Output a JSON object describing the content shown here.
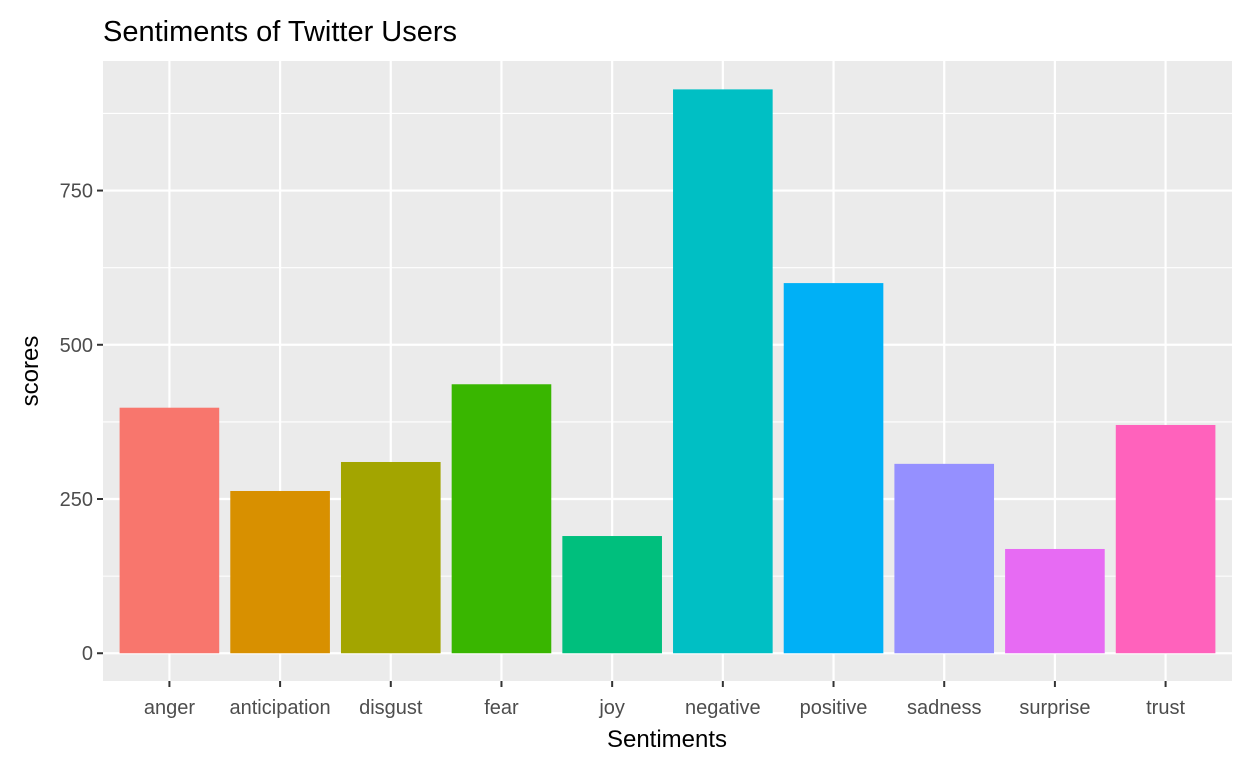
{
  "chart_data": {
    "type": "bar",
    "title": "Sentiments of Twitter Users",
    "xlabel": "Sentiments",
    "ylabel": "scores",
    "categories": [
      "anger",
      "anticipation",
      "disgust",
      "fear",
      "joy",
      "negative",
      "positive",
      "sadness",
      "surprise",
      "trust"
    ],
    "values": [
      398,
      263,
      310,
      436,
      190,
      914,
      600,
      307,
      169,
      370
    ],
    "colors": [
      "#F8766D",
      "#D89000",
      "#A3A500",
      "#39B600",
      "#00BF7D",
      "#00BFC4",
      "#00B0F6",
      "#9590FF",
      "#E76BF3",
      "#FF62BC"
    ],
    "ylim": [
      -45,
      960
    ],
    "yticks": [
      0,
      250,
      500,
      750
    ],
    "ytick_labels": [
      "0",
      "250",
      "500",
      "750"
    ],
    "grid": true,
    "legend": "none"
  }
}
